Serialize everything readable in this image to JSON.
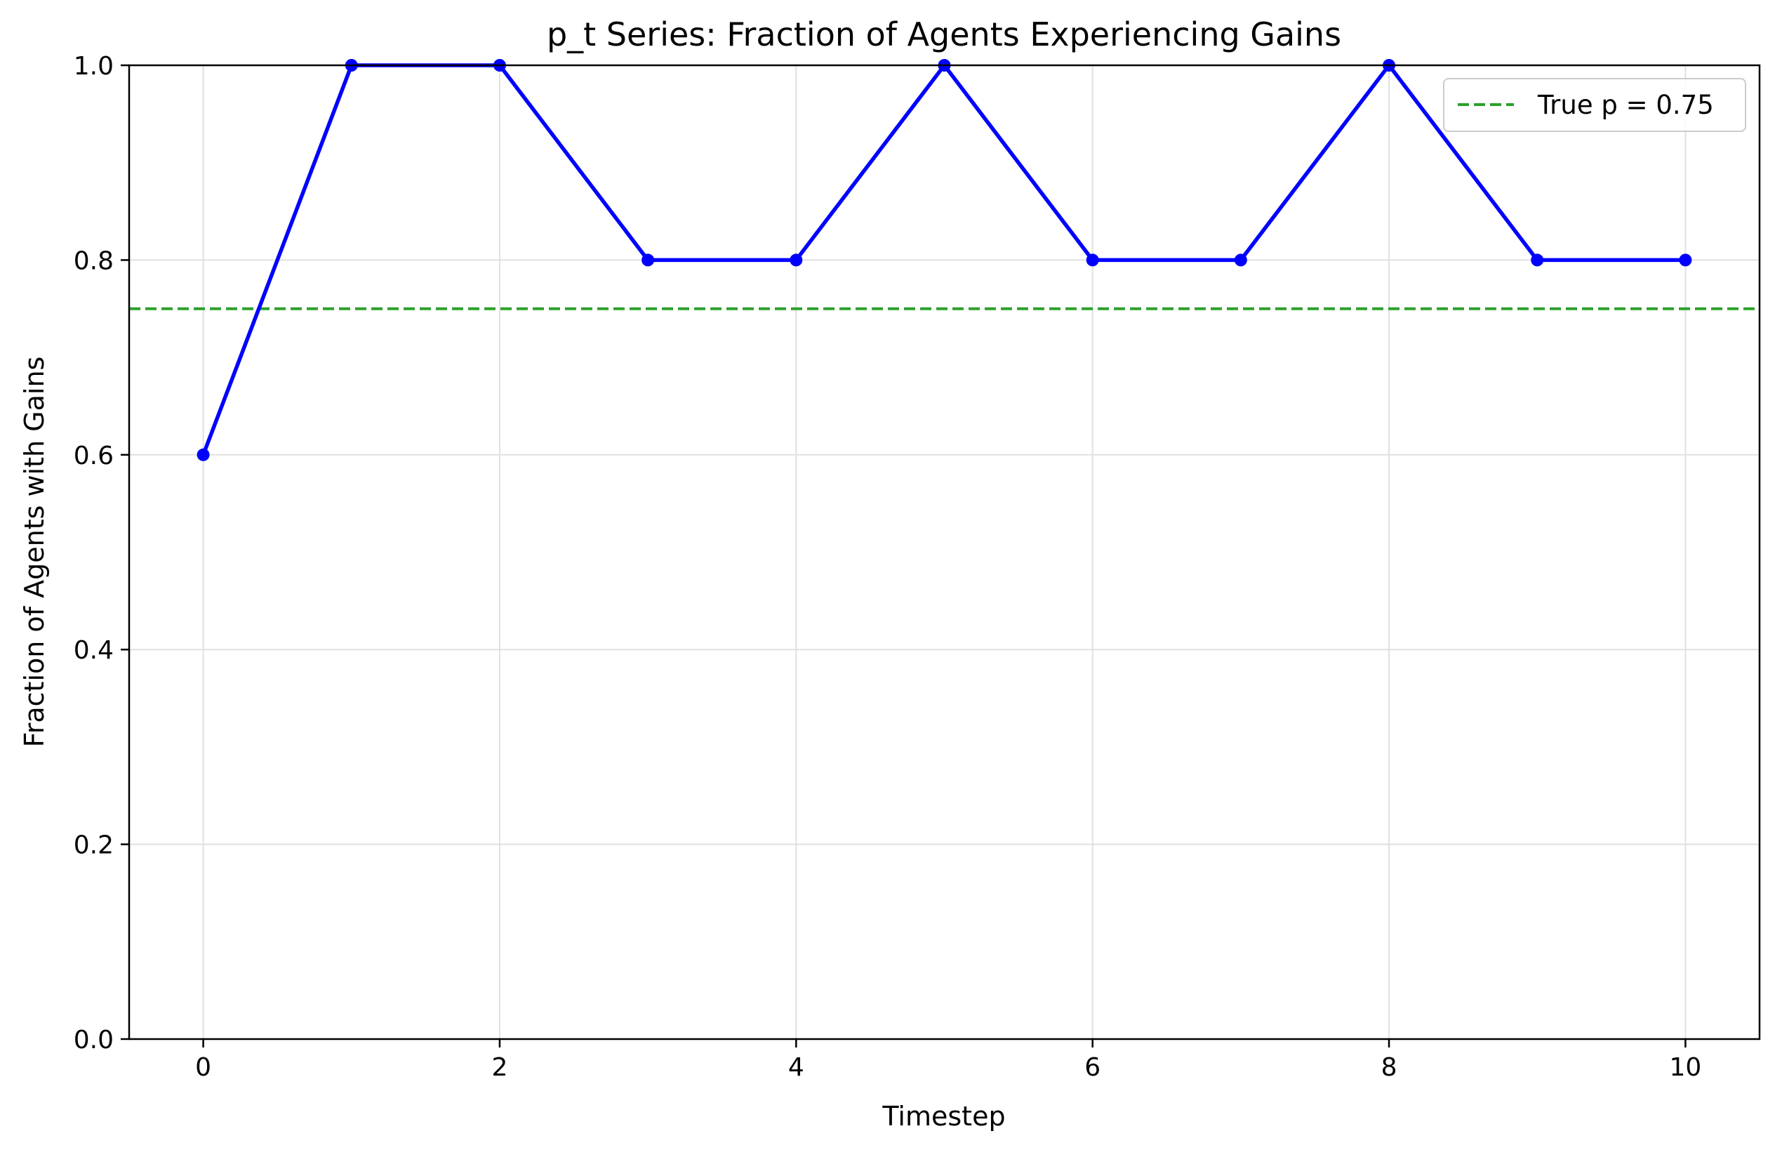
{
  "chart_data": {
    "type": "line",
    "title": "p_t Series: Fraction of Agents Experiencing Gains",
    "xlabel": "Timestep",
    "ylabel": "Fraction of Agents with Gains",
    "xlim": [
      -0.5,
      10.5
    ],
    "ylim": [
      0.0,
      1.0
    ],
    "xticks": [
      0,
      2,
      4,
      6,
      8,
      10
    ],
    "xtick_labels": [
      "0",
      "2",
      "4",
      "6",
      "8",
      "10"
    ],
    "yticks": [
      0.0,
      0.2,
      0.4,
      0.6,
      0.8,
      1.0
    ],
    "ytick_labels": [
      "0.0",
      "0.2",
      "0.4",
      "0.6",
      "0.8",
      "1.0"
    ],
    "grid": true,
    "legend_position": "top-right",
    "series": [
      {
        "x": [
          0,
          1,
          2,
          3,
          4,
          5,
          6,
          7,
          8,
          9,
          10
        ],
        "values": [
          0.6,
          1.0,
          1.0,
          0.8,
          0.8,
          1.0,
          0.8,
          0.8,
          1.0,
          0.8,
          0.8
        ],
        "color": "#0000ff",
        "style": "solid",
        "marker": "circle"
      }
    ],
    "reference_lines": [
      {
        "name": "True p = 0.75",
        "y": 0.75,
        "color": "#2ca02c",
        "style": "dashed"
      }
    ]
  }
}
